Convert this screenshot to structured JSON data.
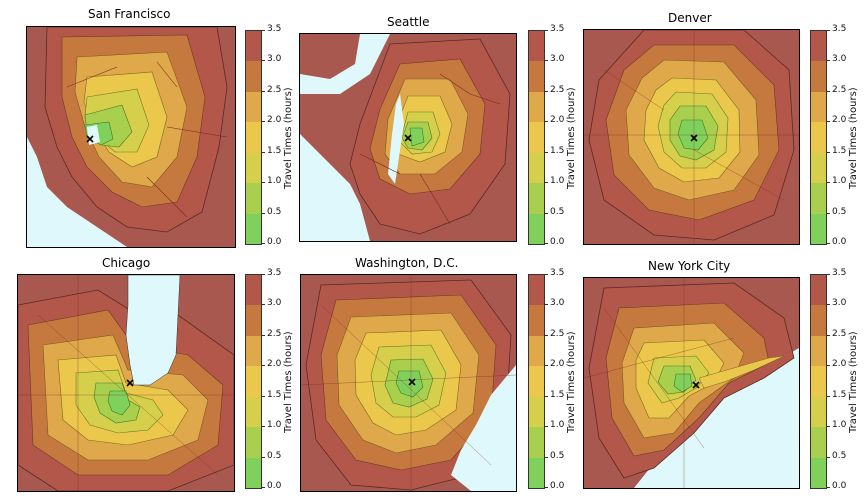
{
  "figure": {
    "colorbar_label": "Travel Times (hours)",
    "colorbar_ticks": [
      "3.5",
      "3.0",
      "2.5",
      "2.0",
      "1.5",
      "1.0",
      "0.5",
      "0.0"
    ],
    "colorbar_colors": [
      "#b3574a",
      "#c6793f",
      "#dea84b",
      "#ebc84b",
      "#d6cf4c",
      "#a9cf4f",
      "#80d15c"
    ],
    "outside_color": "#a8584f",
    "water_color": "#dff8fb",
    "center_marker": "x-marker-icon"
  },
  "maps": [
    {
      "key": "sf",
      "title": "San Francisco"
    },
    {
      "key": "sea",
      "title": "Seattle"
    },
    {
      "key": "den",
      "title": "Denver"
    },
    {
      "key": "chi",
      "title": "Chicago"
    },
    {
      "key": "dc",
      "title": "Washington, D.C."
    },
    {
      "key": "nyc",
      "title": "New York City"
    }
  ]
}
